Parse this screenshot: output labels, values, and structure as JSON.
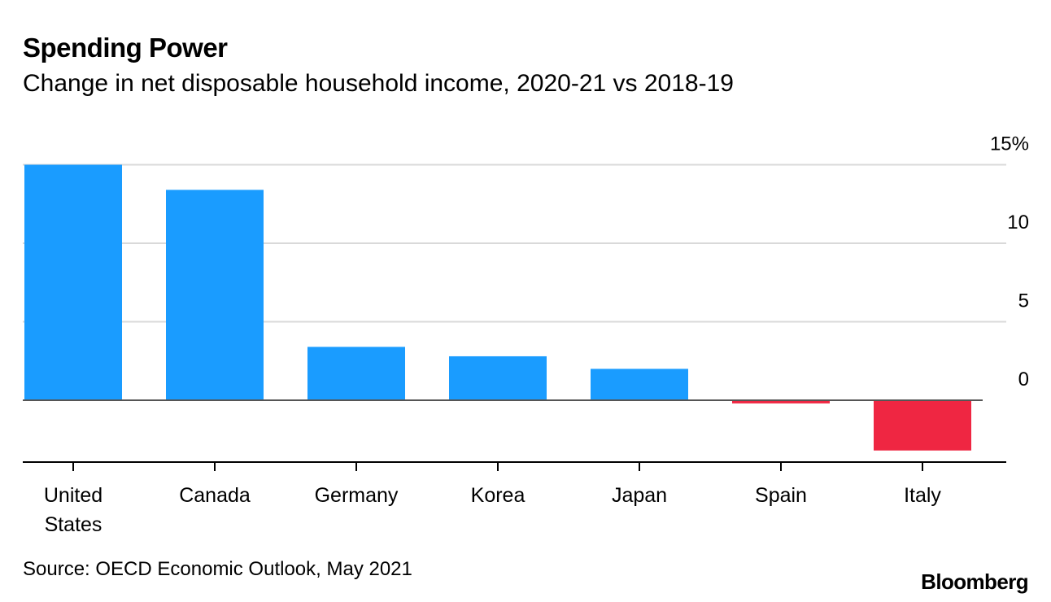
{
  "header": {
    "title": "Spending Power",
    "subtitle": "Change in net disposable household income, 2020-21 vs 2018-19"
  },
  "footer": {
    "source": "Source: OECD Economic Outlook, May 2021",
    "brand": "Bloomberg"
  },
  "chart_data": {
    "type": "bar",
    "title": "Spending Power",
    "subtitle": "Change in net disposable household income, 2020-21 vs 2018-19",
    "xlabel": "",
    "ylabel": "",
    "unit": "%",
    "categories": [
      "United States",
      "Canada",
      "Germany",
      "Korea",
      "Japan",
      "Spain",
      "Italy"
    ],
    "category_lines": [
      [
        "United",
        "States"
      ],
      [
        "Canada"
      ],
      [
        "Germany"
      ],
      [
        "Korea"
      ],
      [
        "Japan"
      ],
      [
        "Spain"
      ],
      [
        "Italy"
      ]
    ],
    "values": [
      15.0,
      13.4,
      3.4,
      2.8,
      2.0,
      -0.2,
      -3.2
    ],
    "ylim": [
      -4,
      15
    ],
    "yticks": [
      0,
      5,
      10,
      15
    ],
    "ytick_labels": [
      "0",
      "5",
      "10",
      "15%"
    ],
    "grid": true,
    "positive_color": "#1a9cff",
    "negative_color": "#ef2642",
    "axis_color": "#000000",
    "grid_color": "#d9d9d9"
  }
}
